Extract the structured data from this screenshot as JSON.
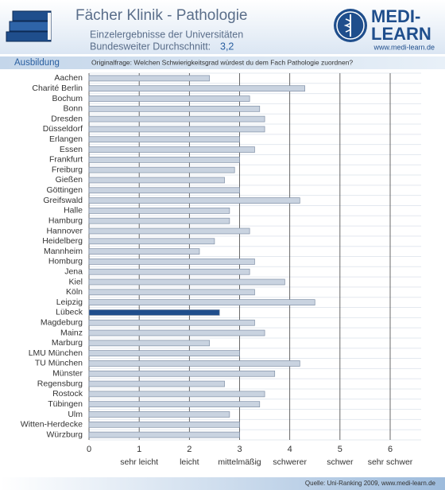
{
  "header": {
    "title": "Fächer Klinik - Pathologie",
    "subtitle": "Einzelergebnisse der Universitäten",
    "average_text": "Bundesweiter Durchschnitt:",
    "average": "3,2",
    "logo_top": "MEDI-",
    "logo_bottom": "LEARN",
    "logo_url": "www.medi-learn.de",
    "section": "Ausbildung",
    "question": "Originalfrage: Welchen Schwierigkeitsgrad würdest du dem Fach Pathologie zuordnen?"
  },
  "chart_data": {
    "type": "hbar",
    "categories": [
      "Aachen",
      "Charité Berlin",
      "Bochum",
      "Bonn",
      "Dresden",
      "Düsseldorf",
      "Erlangen",
      "Essen",
      "Frankfurt",
      "Freiburg",
      "Gießen",
      "Göttingen",
      "Greifswald",
      "Halle",
      "Hamburg",
      "Hannover",
      "Heidelberg",
      "Mannheim",
      "Homburg",
      "Jena",
      "Kiel",
      "Köln",
      "Leipzig",
      "Lübeck",
      "Magdeburg",
      "Mainz",
      "Marburg",
      "LMU München",
      "TU München",
      "Münster",
      "Regensburg",
      "Rostock",
      "Tübingen",
      "Ulm",
      "Witten-Herdecke",
      "Würzburg"
    ],
    "values": [
      2.4,
      4.3,
      3.2,
      3.4,
      3.5,
      3.5,
      3.0,
      3.3,
      3.0,
      2.9,
      2.7,
      3.0,
      4.2,
      2.8,
      2.8,
      3.2,
      2.5,
      2.2,
      3.3,
      3.2,
      3.9,
      3.3,
      4.5,
      2.6,
      3.3,
      3.5,
      2.4,
      3.0,
      4.2,
      3.7,
      2.7,
      3.5,
      3.4,
      2.8,
      3.0,
      3.0
    ],
    "colors": [
      "#c9d3e0",
      "#c9d3e0",
      "#c9d3e0",
      "#c9d3e0",
      "#c9d3e0",
      "#c9d3e0",
      "#c9d3e0",
      "#c9d3e0",
      "#c9d3e0",
      "#c9d3e0",
      "#c9d3e0",
      "#c9d3e0",
      "#c9d3e0",
      "#c9d3e0",
      "#c9d3e0",
      "#c9d3e0",
      "#c9d3e0",
      "#c9d3e0",
      "#c9d3e0",
      "#c9d3e0",
      "#c9d3e0",
      "#c9d3e0",
      "#c9d3e0",
      "#1f4e8c",
      "#c9d3e0",
      "#c9d3e0",
      "#c9d3e0",
      "#c9d3e0",
      "#c9d3e0",
      "#c9d3e0",
      "#c9d3e0",
      "#c9d3e0",
      "#c9d3e0",
      "#c9d3e0",
      "#c9d3e0",
      "#c9d3e0"
    ],
    "xlim": [
      0,
      6
    ],
    "xticks": [
      0,
      1,
      2,
      3,
      4,
      5,
      6
    ],
    "scale_labels": [
      "sehr leicht",
      "leicht",
      "mittelmäßig",
      "schwerer",
      "schwer",
      "sehr schwer"
    ],
    "grid": true,
    "source": "Quelle: Uni-Ranking 2009, www.medi-learn.de"
  }
}
